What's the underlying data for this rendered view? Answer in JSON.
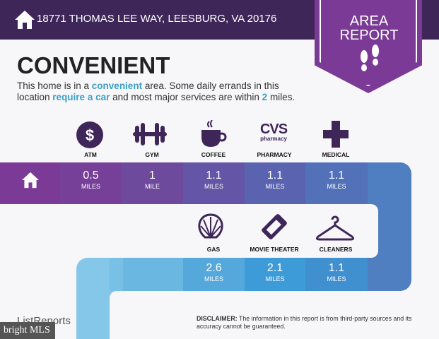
{
  "header": {
    "address": "18771 THOMAS LEE WAY, LEESBURG, VA 20176",
    "badge_line1": "AREA",
    "badge_line2": "REPORT"
  },
  "main": {
    "title": "CONVENIENT",
    "desc_parts": [
      "This home is in a ",
      "convenient",
      " area. Some daily errands in this location ",
      "require a car",
      " and most major services are within ",
      "2",
      " miles."
    ]
  },
  "row1": [
    {
      "label": "ATM",
      "icon": "dollar-icon",
      "value": "0.5",
      "unit": "MILES"
    },
    {
      "label": "GYM",
      "icon": "dumbbell-icon",
      "value": "1",
      "unit": "MILE"
    },
    {
      "label": "COFFEE",
      "icon": "coffee-cup-icon",
      "value": "1.1",
      "unit": "MILES"
    },
    {
      "label": "PHARMACY",
      "icon": "cvs-pharmacy-logo",
      "value": "1.1",
      "unit": "MILES"
    },
    {
      "label": "MEDICAL",
      "icon": "medical-cross-icon",
      "value": "1.1",
      "unit": "MILES"
    }
  ],
  "row2": [
    {
      "label": "GAS",
      "icon": "shell-icon",
      "value": "2.6",
      "unit": "MILES"
    },
    {
      "label": "MOVIE THEATER",
      "icon": "ticket-icon",
      "value": "2.1",
      "unit": "MILES"
    },
    {
      "label": "CLEANERS",
      "icon": "hanger-icon",
      "value": "1.1",
      "unit": "MILES"
    }
  ],
  "cvs": {
    "big": "CVS",
    "small": "pharmacy"
  },
  "footer": {
    "brand": "ListReports",
    "disclaimer_label": "DISCLAIMER:",
    "disclaimer": " The information in this report is from third-party sources and its accuracy cannot be guaranteed.",
    "watermark": "bright MLS"
  },
  "colors": {
    "header": "#3f2659",
    "badge": "#7b3a96",
    "accent": "#3aa0c8"
  }
}
